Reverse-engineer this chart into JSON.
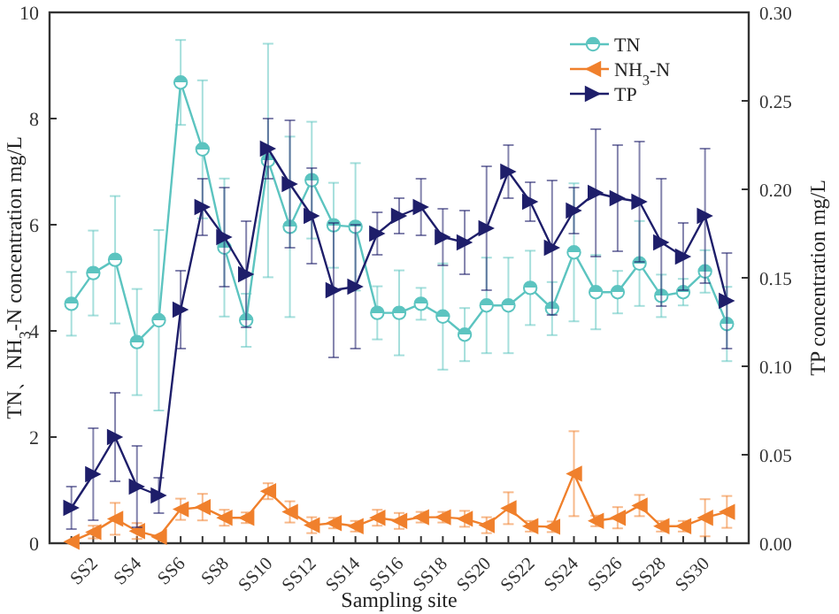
{
  "chart_data": {
    "type": "line",
    "xlabel": "Sampling site",
    "ylabel": "TN、NH$_{3}$-N concentration mg/L",
    "y2label": "TP concentration mg/L",
    "categories": [
      null,
      "SS2",
      null,
      "SS4",
      null,
      "SS6",
      null,
      "SS8",
      null,
      "SS10",
      null,
      "SS12",
      null,
      "SS14",
      null,
      "SS16",
      null,
      "SS18",
      null,
      "SS20",
      null,
      "SS22",
      null,
      "SS24",
      null,
      "SS26",
      null,
      "SS28",
      null,
      "SS30",
      null
    ],
    "series": [
      {
        "name": "TN",
        "color": "#5cc4c0",
        "marker": "circle",
        "values": [
          4.51,
          5.09,
          5.34,
          3.79,
          4.2,
          8.68,
          7.42,
          5.57,
          4.2,
          7.21,
          5.96,
          6.84,
          5.99,
          5.96,
          4.34,
          4.34,
          4.51,
          4.27,
          3.93,
          4.48,
          4.48,
          4.81,
          4.42,
          5.48,
          4.73,
          4.73,
          5.27,
          4.66,
          4.73,
          5.12,
          4.13
        ],
        "errors": [
          0.6,
          0.8,
          1.2,
          1.0,
          1.7,
          0.8,
          1.3,
          1.3,
          0.5,
          2.2,
          1.7,
          1.1,
          0.8,
          1.2,
          0.5,
          0.8,
          0.3,
          1.0,
          0.5,
          0.9,
          0.9,
          0.7,
          0.5,
          1.3,
          0.7,
          0.4,
          0.8,
          0.4,
          0.25,
          0.4,
          0.7
        ]
      },
      {
        "name": "NH$_{3}$-N",
        "color": "#f0802c",
        "marker": "triangle",
        "values": [
          0.03,
          0.21,
          0.46,
          0.23,
          0.12,
          0.64,
          0.68,
          0.48,
          0.48,
          0.98,
          0.59,
          0.34,
          0.38,
          0.32,
          0.48,
          0.42,
          0.49,
          0.49,
          0.46,
          0.34,
          0.66,
          0.32,
          0.31,
          1.31,
          0.42,
          0.48,
          0.71,
          0.32,
          0.32,
          0.48,
          0.59
        ],
        "errors": [
          null,
          0.12,
          0.3,
          0.15,
          null,
          0.2,
          0.25,
          0.15,
          0.1,
          0.15,
          0.2,
          0.15,
          0.1,
          0.1,
          0.15,
          0.15,
          0.1,
          0.1,
          0.15,
          0.15,
          0.3,
          0.1,
          0.1,
          0.8,
          0.1,
          0.2,
          0.2,
          0.1,
          0.1,
          0.35,
          0.3
        ]
      },
      {
        "name": "TP",
        "color": "#1e1e6a",
        "marker": "triangle",
        "axis": "y2",
        "values": [
          0.02,
          0.039,
          0.06,
          0.032,
          0.027,
          0.132,
          0.19,
          0.173,
          0.152,
          0.223,
          0.203,
          0.185,
          0.143,
          0.145,
          0.175,
          0.185,
          0.19,
          0.173,
          0.17,
          0.178,
          0.21,
          0.193,
          0.167,
          0.188,
          0.198,
          0.195,
          0.193,
          0.17,
          0.162,
          0.185,
          0.137
        ],
        "errors": [
          0.012,
          0.026,
          0.025,
          0.023,
          0.01,
          0.022,
          0.016,
          0.028,
          0.03,
          0.017,
          0.036,
          0.027,
          0.038,
          0.035,
          0.012,
          0.01,
          0.016,
          0.016,
          0.018,
          0.035,
          0.015,
          0.011,
          0.038,
          0.013,
          0.036,
          0.03,
          0.034,
          0.036,
          0.019,
          0.038,
          0.027
        ]
      }
    ],
    "ylim": [
      0,
      10
    ],
    "yticks": [
      0,
      2,
      4,
      6,
      8,
      10
    ],
    "y2lim": [
      0,
      0.3
    ],
    "y2ticks": [
      {
        "value": 0,
        "label": "0.00"
      },
      {
        "value": 0.05,
        "label": "0.05"
      },
      {
        "value": 0.1,
        "label": "0.10"
      },
      {
        "value": 0.15,
        "label": "0.15"
      },
      {
        "value": 0.2,
        "label": "0.20"
      },
      {
        "value": 0.25,
        "label": "0.25"
      },
      {
        "value": 0.3,
        "label": "0.30"
      }
    ],
    "grid": false,
    "legend": "top right"
  }
}
